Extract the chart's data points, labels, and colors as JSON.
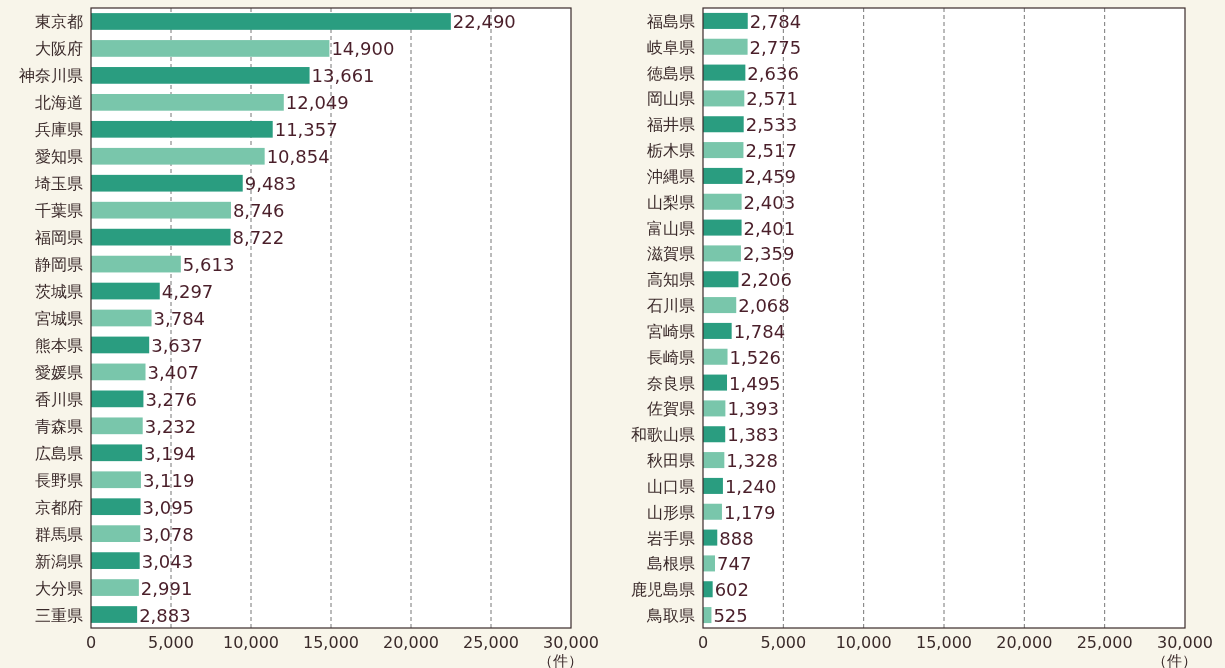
{
  "chart_data": [
    {
      "type": "bar",
      "orientation": "horizontal",
      "xlabel": "（件）",
      "grid": "x",
      "categories": [
        "東京都",
        "大阪府",
        "神奈川県",
        "北海道",
        "兵庫県",
        "愛知県",
        "埼玉県",
        "千葉県",
        "福岡県",
        "静岡県",
        "茨城県",
        "宮城県",
        "熊本県",
        "愛媛県",
        "香川県",
        "青森県",
        "広島県",
        "長野県",
        "京都府",
        "群馬県",
        "新潟県",
        "大分県",
        "三重県"
      ],
      "values": [
        22490,
        14900,
        13661,
        12049,
        11357,
        10854,
        9483,
        8746,
        8722,
        5613,
        4297,
        3784,
        3637,
        3407,
        3276,
        3232,
        3194,
        3119,
        3095,
        3078,
        3043,
        2991,
        2883
      ],
      "value_labels": [
        "22,490",
        "14,900",
        "13,661",
        "12,049",
        "11,357",
        "10,854",
        "9,483",
        "8,746",
        "8,722",
        "5,613",
        "4,297",
        "3,784",
        "3,637",
        "3,407",
        "3,276",
        "3,232",
        "3,194",
        "3,119",
        "3,095",
        "3,078",
        "3,043",
        "2,991",
        "2,883"
      ],
      "colors": [
        "#2a9d80",
        "#79c6ab",
        "#2a9d80",
        "#79c6ab",
        "#2a9d80",
        "#79c6ab",
        "#2a9d80",
        "#79c6ab",
        "#2a9d80",
        "#79c6ab",
        "#2a9d80",
        "#79c6ab",
        "#2a9d80",
        "#79c6ab",
        "#2a9d80",
        "#79c6ab",
        "#2a9d80",
        "#79c6ab",
        "#2a9d80",
        "#79c6ab",
        "#2a9d80",
        "#79c6ab",
        "#2a9d80"
      ],
      "xlim": [
        0,
        30000
      ],
      "xticks": [
        0,
        {
          "value": 5000,
          "label": "5,000"
        },
        {
          "value": 10000,
          "label": "10,000"
        },
        {
          "value": 15000,
          "label": "15,000"
        },
        {
          "value": 20000,
          "label": "20,000"
        },
        {
          "value": 25000,
          "label": "25,000"
        },
        {
          "value": 30000,
          "label": "30,000"
        }
      ]
    },
    {
      "type": "bar",
      "orientation": "horizontal",
      "xlabel": "（件）",
      "grid": "x",
      "categories": [
        "福島県",
        "岐阜県",
        "徳島県",
        "岡山県",
        "福井県",
        "栃木県",
        "沖縄県",
        "山梨県",
        "富山県",
        "滋賀県",
        "高知県",
        "石川県",
        "宮崎県",
        "長崎県",
        "奈良県",
        "佐賀県",
        "和歌山県",
        "秋田県",
        "山口県",
        "山形県",
        "岩手県",
        "島根県",
        "鹿児島県",
        "鳥取県"
      ],
      "values": [
        2784,
        2775,
        2636,
        2571,
        2533,
        2517,
        2459,
        2403,
        2401,
        2359,
        2206,
        2068,
        1784,
        1526,
        1495,
        1393,
        1383,
        1328,
        1240,
        1179,
        888,
        747,
        602,
        525
      ],
      "value_labels": [
        "2,784",
        "2,775",
        "2,636",
        "2,571",
        "2,533",
        "2,517",
        "2,459",
        "2,403",
        "2,401",
        "2,359",
        "2,206",
        "2,068",
        "1,784",
        "1,526",
        "1,495",
        "1,393",
        "1,383",
        "1,328",
        "1,240",
        "1,179",
        "888",
        "747",
        "602",
        "525"
      ],
      "colors": [
        "#2a9d80",
        "#79c6ab",
        "#2a9d80",
        "#79c6ab",
        "#2a9d80",
        "#79c6ab",
        "#2a9d80",
        "#79c6ab",
        "#2a9d80",
        "#79c6ab",
        "#2a9d80",
        "#79c6ab",
        "#2a9d80",
        "#79c6ab",
        "#2a9d80",
        "#79c6ab",
        "#2a9d80",
        "#79c6ab",
        "#2a9d80",
        "#79c6ab",
        "#2a9d80",
        "#79c6ab",
        "#2a9d80",
        "#79c6ab"
      ],
      "xlim": [
        0,
        30000
      ],
      "xticks": [
        0,
        {
          "value": 5000,
          "label": "5,000"
        },
        {
          "value": 10000,
          "label": "10,000"
        },
        {
          "value": 15000,
          "label": "15,000"
        },
        {
          "value": 20000,
          "label": "20,000"
        },
        {
          "value": 25000,
          "label": "25,000"
        },
        {
          "value": 30000,
          "label": "30,000"
        }
      ]
    }
  ]
}
